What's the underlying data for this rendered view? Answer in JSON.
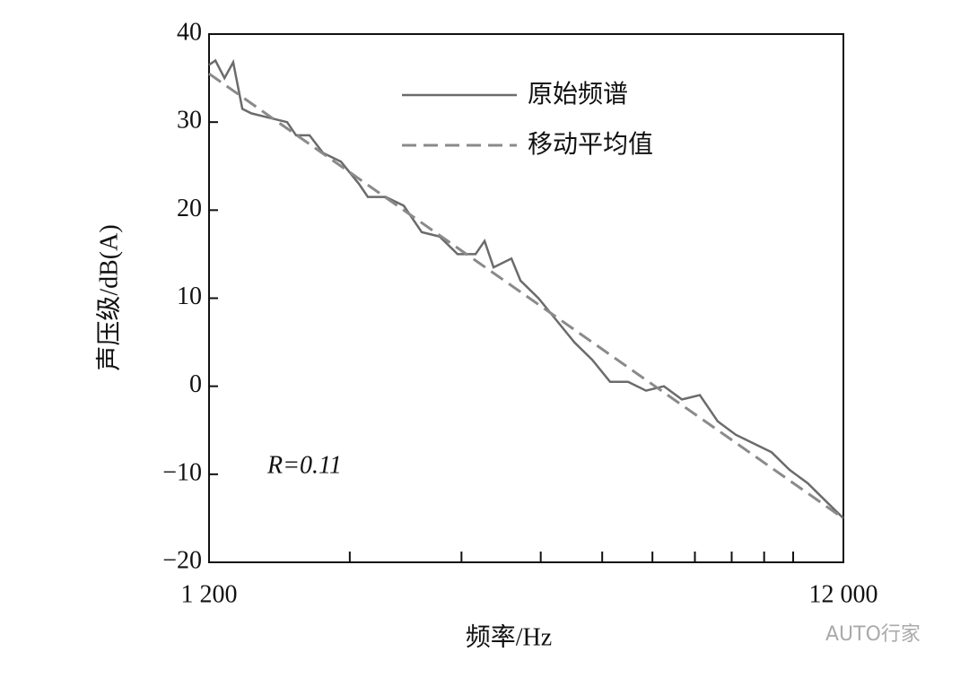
{
  "chart_data": {
    "type": "line",
    "x_label": "频率/Hz",
    "y_label": "声压级/dB(A)",
    "annotation": "R=0.11",
    "watermark": "AUTO行家",
    "log_x": true,
    "xlim": [
      1200,
      12000
    ],
    "xticks": [
      {
        "value": 1200,
        "label": "1 200"
      },
      {
        "value": 12000,
        "label": "12 000"
      }
    ],
    "x_minor_ticks": [
      2000,
      3000,
      4000,
      5000,
      6000,
      7000,
      8000,
      9000,
      10000
    ],
    "ylim": [
      -20,
      40
    ],
    "yticks": [
      {
        "value": -20,
        "label": "−20"
      },
      {
        "value": -10,
        "label": "−10"
      },
      0,
      10,
      20,
      30,
      40
    ],
    "legend": "top",
    "series": [
      {
        "name": "原始频谱",
        "color": "#6b6b6b",
        "dash": false,
        "x": [
          1200,
          1228,
          1269,
          1310,
          1354,
          1399,
          1493,
          1593,
          1646,
          1728,
          1815,
          1937,
          2067,
          2136,
          2279,
          2433,
          2597,
          2771,
          2958,
          3157,
          3262,
          3370,
          3596,
          3716,
          3966,
          4234,
          4518,
          4822,
          5146,
          5492,
          5862,
          6256,
          6677,
          7126,
          7607,
          8119,
          8665,
          9248,
          9871,
          10534,
          11243,
          12000
        ],
        "values": [
          36.5,
          37,
          35,
          36.8,
          31.5,
          31,
          30.5,
          30,
          28.5,
          28.5,
          26.5,
          25.5,
          23,
          21.5,
          21.5,
          20.5,
          17.5,
          17,
          15,
          15,
          16.5,
          13.5,
          14.5,
          12,
          10,
          7.5,
          5,
          3,
          0.5,
          0.5,
          -0.5,
          0,
          -1.5,
          -1,
          -4,
          -5.5,
          -6.5,
          -7.5,
          -9.5,
          -11,
          -13,
          -15
        ]
      },
      {
        "name": "移动平均值",
        "color": "#8a8a8a",
        "dash": true,
        "x": [
          1200,
          1500,
          2000,
          3000,
          4000,
          5000,
          6000,
          8000,
          10000,
          12000
        ],
        "values": [
          35.5,
          30.6,
          24.3,
          15.4,
          9.1,
          4.2,
          0.2,
          -6.1,
          -11,
          -15
        ]
      }
    ]
  }
}
